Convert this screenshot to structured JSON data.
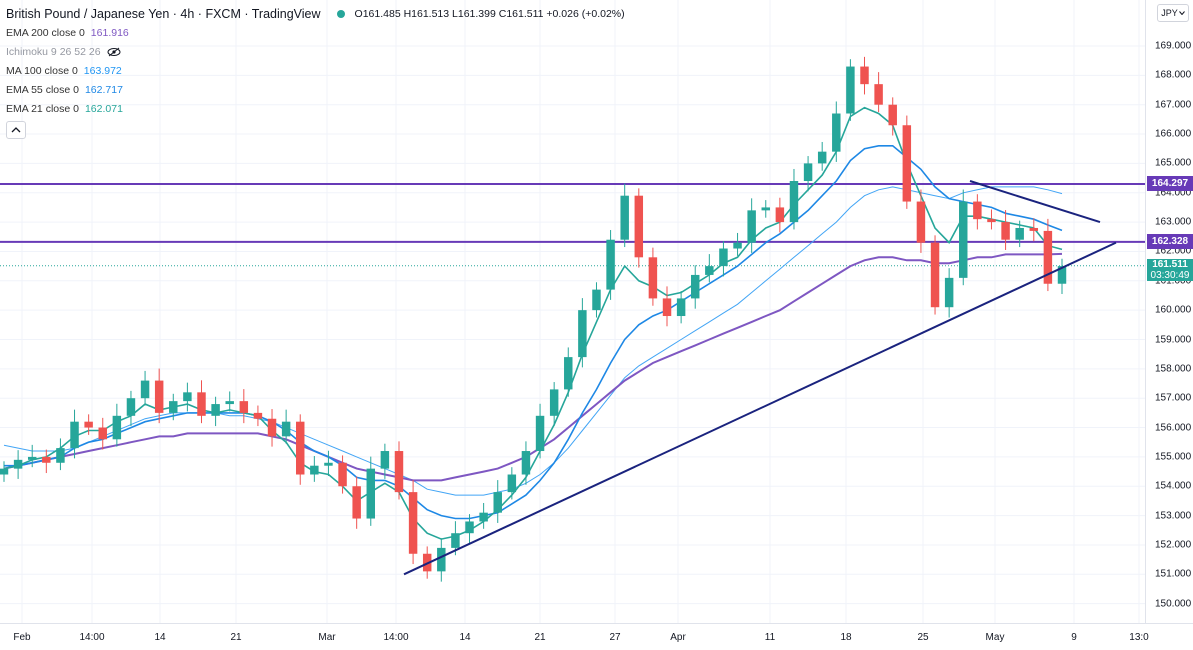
{
  "header": {
    "title": "British Pound / Japanese Yen · 4h · FXCM · TradingView",
    "ohlc": "O161.485 H161.513 L161.399 C161.511 +0.026 (+0.02%)"
  },
  "indicators": [
    {
      "name": "EMA 200 close 0",
      "value": "161.916",
      "color": "#7e57c2",
      "faded": false
    },
    {
      "name": "Ichimoku 9 26 52 26",
      "value": "",
      "color": "#9598a1",
      "faded": true
    },
    {
      "name": "MA 100 close 0",
      "value": "163.972",
      "color": "#2196f3",
      "faded": false
    },
    {
      "name": "EMA 55 close 0",
      "value": "162.717",
      "color": "#1e88e5",
      "faded": false
    },
    {
      "name": "EMA 21 close 0",
      "value": "162.071",
      "color": "#26a69a",
      "faded": false
    }
  ],
  "currency_button": "JPY",
  "price_tags": [
    {
      "label": "164.297",
      "value": 164.297,
      "color": "#673ab7"
    },
    {
      "label": "162.328",
      "value": 162.328,
      "color": "#673ab7"
    }
  ],
  "current_price": {
    "price": "161.511",
    "countdown": "03:30:49",
    "value": 161.511
  },
  "chart_data": {
    "type": "candlestick",
    "title": "British Pound / Japanese Yen · 4h · FXCM",
    "y_ticks": [
      "169.000",
      "168.000",
      "167.000",
      "166.000",
      "165.000",
      "164.000",
      "163.000",
      "162.000",
      "161.000",
      "160.000",
      "159.000",
      "158.000",
      "157.000",
      "156.000",
      "155.000",
      "154.000",
      "153.000",
      "152.000",
      "151.000",
      "150.000"
    ],
    "ylim": [
      149.3,
      169.6
    ],
    "x_ticks": [
      "Feb",
      "14:00",
      "14",
      "21",
      "Mar",
      "14:00",
      "14",
      "21",
      "27",
      "Apr",
      "11",
      "18",
      "25",
      "May",
      "9",
      "13:0"
    ],
    "colors": {
      "up": "#26a69a",
      "down": "#ef5350",
      "ema21": "#26a69a",
      "ema55": "#1e88e5",
      "ma100": "#42a5f5",
      "ema200": "#7e57c2",
      "levels": "#673ab7",
      "trend": "#1a237e"
    },
    "horizontal_levels": [
      164.297,
      162.328
    ],
    "closes": [
      154.6,
      154.9,
      155.0,
      154.8,
      155.3,
      156.2,
      156.0,
      155.6,
      156.4,
      157.0,
      157.6,
      156.5,
      156.9,
      157.2,
      156.4,
      156.8,
      156.9,
      156.5,
      156.3,
      155.7,
      156.2,
      154.4,
      154.7,
      154.8,
      154.0,
      152.9,
      154.6,
      155.2,
      153.8,
      151.7,
      151.1,
      151.9,
      152.4,
      152.8,
      153.1,
      153.8,
      154.4,
      155.2,
      156.4,
      157.3,
      158.4,
      160.0,
      160.7,
      162.4,
      163.9,
      161.8,
      160.4,
      159.8,
      160.4,
      161.2,
      161.5,
      162.1,
      162.3,
      163.4,
      163.5,
      163.0,
      164.4,
      165.0,
      165.4,
      166.7,
      168.3,
      167.7,
      167.0,
      166.3,
      163.7,
      162.3,
      160.1,
      161.1,
      163.7,
      163.1,
      163.0,
      162.4,
      162.8,
      162.7,
      160.9,
      161.5
    ],
    "ema21": [
      154.6,
      154.7,
      154.9,
      155.0,
      155.3,
      155.7,
      155.9,
      155.9,
      156.2,
      156.4,
      156.8,
      156.6,
      156.7,
      156.8,
      156.6,
      156.5,
      156.6,
      156.5,
      156.4,
      155.9,
      155.5,
      154.8,
      154.5,
      154.4,
      154.0,
      153.5,
      153.8,
      154.1,
      153.8,
      152.9,
      152.4,
      152.2,
      152.3,
      152.5,
      152.8,
      153.2,
      153.7,
      154.3,
      155.2,
      156.1,
      157.2,
      158.5,
      159.6,
      160.7,
      161.5,
      161.0,
      160.8,
      160.5,
      160.6,
      160.9,
      161.2,
      161.6,
      161.8,
      162.4,
      162.8,
      163.0,
      163.6,
      164.1,
      164.6,
      165.4,
      166.6,
      166.9,
      166.7,
      166.3,
      165.0,
      163.9,
      162.8,
      162.3,
      163.2,
      163.2,
      163.1,
      163.0,
      162.9,
      162.8,
      162.2,
      162.07
    ],
    "ema55": [
      154.7,
      154.7,
      154.8,
      154.9,
      155.0,
      155.3,
      155.5,
      155.6,
      155.8,
      156.0,
      156.2,
      156.3,
      156.4,
      156.5,
      156.5,
      156.5,
      156.5,
      156.5,
      156.4,
      156.2,
      155.9,
      155.5,
      155.2,
      155.0,
      154.7,
      154.3,
      154.2,
      154.2,
      154.0,
      153.6,
      153.2,
      153.0,
      152.9,
      152.9,
      153.0,
      153.1,
      153.4,
      153.7,
      154.2,
      154.8,
      155.6,
      156.5,
      157.3,
      158.2,
      159.0,
      159.5,
      159.8,
      160.0,
      160.3,
      160.6,
      160.9,
      161.2,
      161.5,
      161.9,
      162.3,
      162.6,
      163.0,
      163.4,
      163.9,
      164.4,
      165.1,
      165.5,
      165.6,
      165.6,
      165.2,
      164.8,
      164.2,
      163.8,
      163.7,
      163.6,
      163.5,
      163.3,
      163.2,
      163.1,
      162.9,
      162.717
    ],
    "ma100": [
      155.4,
      155.3,
      155.2,
      155.2,
      155.2,
      155.3,
      155.5,
      155.7,
      155.9,
      156.1,
      156.3,
      156.4,
      156.5,
      156.5,
      156.5,
      156.5,
      156.4,
      156.4,
      156.3,
      156.2,
      156.0,
      155.8,
      155.6,
      155.4,
      155.2,
      155.0,
      154.8,
      154.6,
      154.4,
      154.2,
      153.9,
      153.8,
      153.7,
      153.7,
      153.7,
      153.8,
      153.9,
      154.1,
      154.4,
      154.8,
      155.3,
      155.9,
      156.5,
      157.1,
      157.7,
      158.1,
      158.4,
      158.7,
      159.0,
      159.3,
      159.6,
      159.9,
      160.2,
      160.6,
      161.0,
      161.4,
      161.8,
      162.2,
      162.6,
      163.0,
      163.5,
      163.9,
      164.1,
      164.2,
      164.1,
      164.0,
      163.9,
      163.8,
      164.0,
      164.1,
      164.2,
      164.2,
      164.2,
      164.2,
      164.1,
      163.972
    ],
    "ema200": [
      154.6,
      154.7,
      154.8,
      154.9,
      155.0,
      155.1,
      155.2,
      155.3,
      155.4,
      155.5,
      155.6,
      155.7,
      155.7,
      155.8,
      155.8,
      155.8,
      155.8,
      155.8,
      155.8,
      155.7,
      155.6,
      155.4,
      155.2,
      155.0,
      154.8,
      154.6,
      154.5,
      154.4,
      154.3,
      154.2,
      154.2,
      154.2,
      154.3,
      154.4,
      154.5,
      154.6,
      154.8,
      155.0,
      155.3,
      155.6,
      156.0,
      156.4,
      156.8,
      157.2,
      157.6,
      157.9,
      158.2,
      158.4,
      158.6,
      158.8,
      159.0,
      159.2,
      159.4,
      159.6,
      159.8,
      160.0,
      160.3,
      160.6,
      160.9,
      161.2,
      161.5,
      161.7,
      161.8,
      161.8,
      161.7,
      161.7,
      161.6,
      161.6,
      161.7,
      161.8,
      161.8,
      161.9,
      161.9,
      161.9,
      161.9,
      161.916
    ],
    "trendlines": [
      {
        "name": "support",
        "from": [
          151.0
        ],
        "to": [
          162.3
        ]
      },
      {
        "name": "resistance",
        "from": [
          164.4
        ],
        "to": [
          163.0
        ]
      }
    ]
  }
}
